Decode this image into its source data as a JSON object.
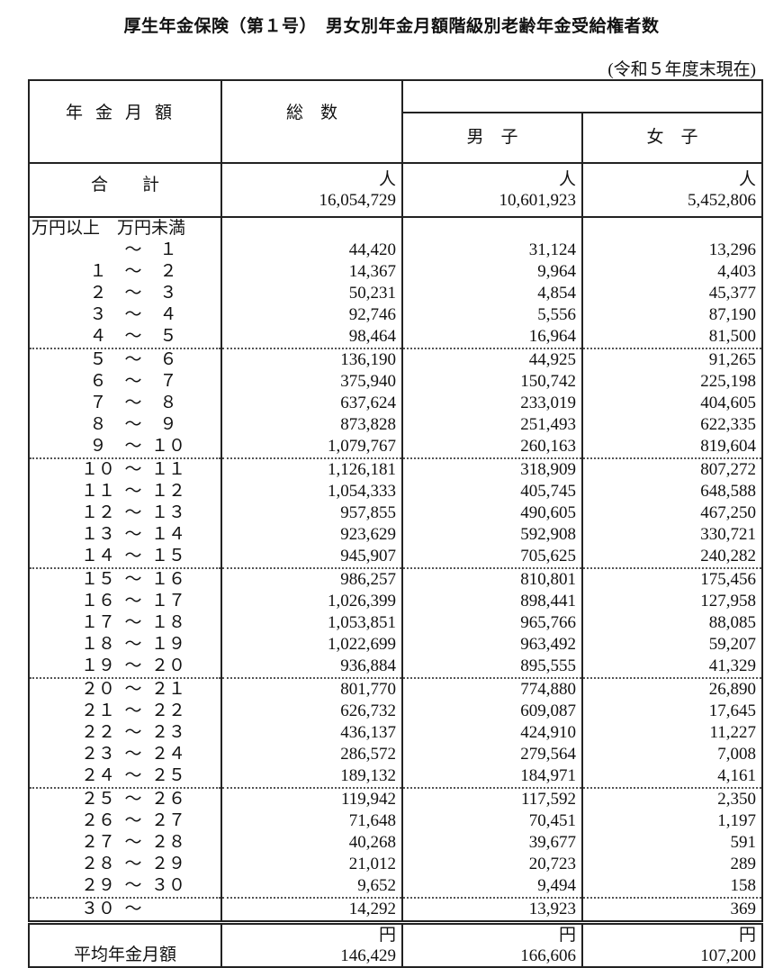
{
  "title": "厚生年金保険（第１号）　男女別年金月額階級別老齢年金受給権者数",
  "as_of": "(令和５年度末現在)",
  "header": {
    "amount": "年金月額",
    "total": "総　数",
    "male": "男　子",
    "female": "女　子"
  },
  "totals": {
    "label": "合　　計",
    "unit": "人",
    "total": "16,054,729",
    "male": "10,601,923",
    "female": "5,452,806"
  },
  "range_header": "万円以上　万円未満",
  "rows": [
    {
      "from": "",
      "to": "１",
      "total": "44,420",
      "male": "31,124",
      "female": "13,296"
    },
    {
      "from": "１",
      "to": "２",
      "total": "14,367",
      "male": "9,964",
      "female": "4,403"
    },
    {
      "from": "２",
      "to": "３",
      "total": "50,231",
      "male": "4,854",
      "female": "45,377"
    },
    {
      "from": "３",
      "to": "４",
      "total": "92,746",
      "male": "5,556",
      "female": "87,190"
    },
    {
      "from": "４",
      "to": "５",
      "total": "98,464",
      "male": "16,964",
      "female": "81,500"
    },
    {
      "from": "５",
      "to": "６",
      "total": "136,190",
      "male": "44,925",
      "female": "91,265"
    },
    {
      "from": "６",
      "to": "７",
      "total": "375,940",
      "male": "150,742",
      "female": "225,198"
    },
    {
      "from": "７",
      "to": "８",
      "total": "637,624",
      "male": "233,019",
      "female": "404,605"
    },
    {
      "from": "８",
      "to": "９",
      "total": "873,828",
      "male": "251,493",
      "female": "622,335"
    },
    {
      "from": "９",
      "to": "１０",
      "total": "1,079,767",
      "male": "260,163",
      "female": "819,604"
    },
    {
      "from": "１０",
      "to": "１１",
      "total": "1,126,181",
      "male": "318,909",
      "female": "807,272"
    },
    {
      "from": "１１",
      "to": "１２",
      "total": "1,054,333",
      "male": "405,745",
      "female": "648,588"
    },
    {
      "from": "１２",
      "to": "１３",
      "total": "957,855",
      "male": "490,605",
      "female": "467,250"
    },
    {
      "from": "１３",
      "to": "１４",
      "total": "923,629",
      "male": "592,908",
      "female": "330,721"
    },
    {
      "from": "１４",
      "to": "１５",
      "total": "945,907",
      "male": "705,625",
      "female": "240,282"
    },
    {
      "from": "１５",
      "to": "１６",
      "total": "986,257",
      "male": "810,801",
      "female": "175,456"
    },
    {
      "from": "１６",
      "to": "１７",
      "total": "1,026,399",
      "male": "898,441",
      "female": "127,958"
    },
    {
      "from": "１７",
      "to": "１８",
      "total": "1,053,851",
      "male": "965,766",
      "female": "88,085"
    },
    {
      "from": "１８",
      "to": "１９",
      "total": "1,022,699",
      "male": "963,492",
      "female": "59,207"
    },
    {
      "from": "１９",
      "to": "２０",
      "total": "936,884",
      "male": "895,555",
      "female": "41,329"
    },
    {
      "from": "２０",
      "to": "２１",
      "total": "801,770",
      "male": "774,880",
      "female": "26,890"
    },
    {
      "from": "２１",
      "to": "２２",
      "total": "626,732",
      "male": "609,087",
      "female": "17,645"
    },
    {
      "from": "２２",
      "to": "２３",
      "total": "436,137",
      "male": "424,910",
      "female": "11,227"
    },
    {
      "from": "２３",
      "to": "２４",
      "total": "286,572",
      "male": "279,564",
      "female": "7,008"
    },
    {
      "from": "２４",
      "to": "２５",
      "total": "189,132",
      "male": "184,971",
      "female": "4,161"
    },
    {
      "from": "２５",
      "to": "２６",
      "total": "119,942",
      "male": "117,592",
      "female": "2,350"
    },
    {
      "from": "２６",
      "to": "２７",
      "total": "71,648",
      "male": "70,451",
      "female": "1,197"
    },
    {
      "from": "２７",
      "to": "２８",
      "total": "40,268",
      "male": "39,677",
      "female": "591"
    },
    {
      "from": "２８",
      "to": "２９",
      "total": "21,012",
      "male": "20,723",
      "female": "289"
    },
    {
      "from": "２９",
      "to": "３０",
      "total": "9,652",
      "male": "9,494",
      "female": "158"
    },
    {
      "from": "３０",
      "to": "",
      "total": "14,292",
      "male": "13,923",
      "female": "369"
    }
  ],
  "tilde": "～",
  "average": {
    "label": "平均年金月額",
    "unit": "円",
    "total": "146,429",
    "male": "166,606",
    "female": "107,200"
  }
}
